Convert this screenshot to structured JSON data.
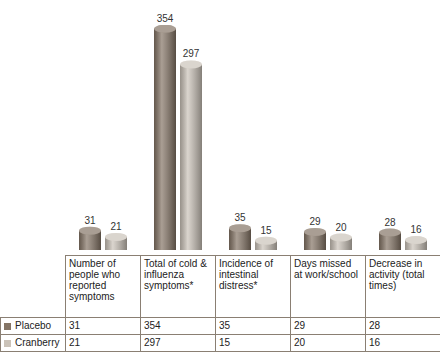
{
  "chart_data": {
    "type": "bar",
    "categories": [
      "Number of people who reported symptoms",
      "Total of cold & influenza symptoms*",
      "Incidence of intestinal distress*",
      "Days missed at work/school",
      "Decrease in activity (total times)"
    ],
    "series": [
      {
        "name": "Placebo",
        "color": "#857566",
        "values": [
          31,
          354,
          35,
          29,
          28
        ]
      },
      {
        "name": "Cranberry",
        "color": "#cbc3b9",
        "values": [
          21,
          297,
          15,
          20,
          16
        ]
      }
    ],
    "ylim": [
      0,
      360
    ],
    "tick_labels": false,
    "data_labels": true
  }
}
